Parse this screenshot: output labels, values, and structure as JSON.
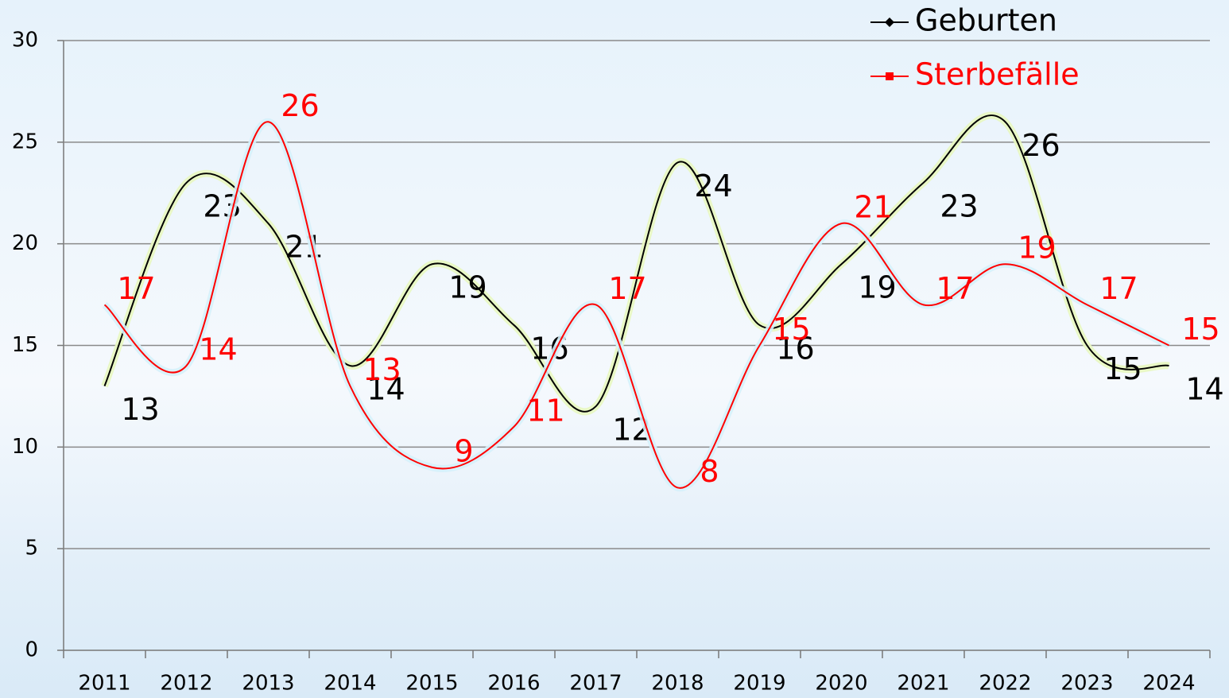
{
  "chart_data": {
    "type": "line",
    "categories": [
      "2011",
      "2012",
      "2013",
      "2014",
      "2015",
      "2016",
      "2017",
      "2018",
      "2019",
      "2020",
      "2021",
      "2022",
      "2023",
      "2024"
    ],
    "series": [
      {
        "name": "Geburten",
        "color": "#000000",
        "values": [
          13,
          23,
          21,
          14,
          19,
          16,
          12,
          24,
          16,
          19,
          23,
          26,
          15,
          14
        ]
      },
      {
        "name": "Sterbefälle",
        "color": "#ff0000",
        "values": [
          17,
          14,
          26,
          13,
          9,
          11,
          17,
          8,
          15,
          21,
          17,
          19,
          17,
          15
        ]
      }
    ],
    "ylim": [
      0,
      30
    ],
    "yticks": [
      0,
      5,
      10,
      15,
      20,
      25,
      30
    ],
    "grid": true,
    "legend": "top-right"
  }
}
